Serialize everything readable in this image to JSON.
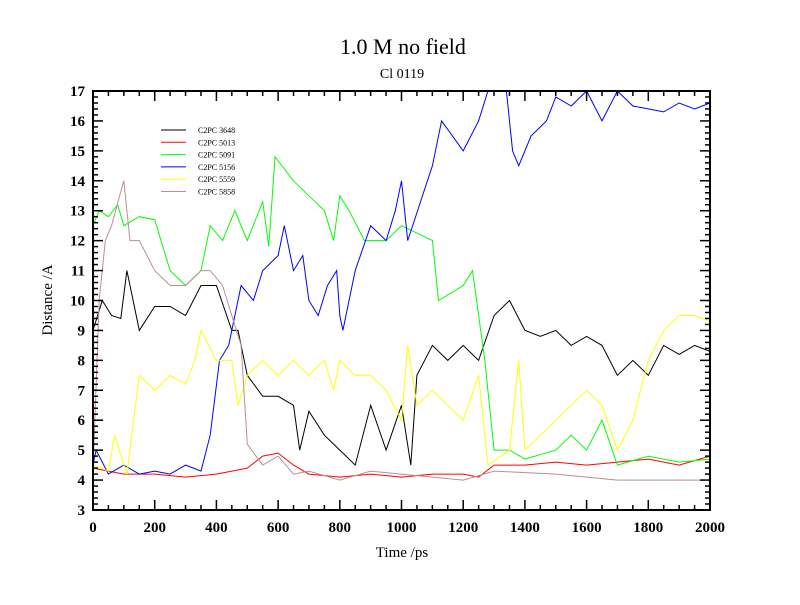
{
  "chart_data": {
    "type": "line",
    "title": "1.0 M no field",
    "subtitle": "Cl 0119",
    "xlabel": "Time /ps",
    "ylabel": "Distance /A",
    "xlim": [
      0,
      2000
    ],
    "ylim": [
      3,
      17
    ],
    "xticks": [
      0,
      200,
      400,
      600,
      800,
      1000,
      1200,
      1400,
      1600,
      1800,
      2000
    ],
    "yticks": [
      3,
      4,
      5,
      6,
      7,
      8,
      9,
      10,
      11,
      12,
      13,
      14,
      15,
      16,
      17
    ],
    "grid": false,
    "legend_position": "top-left",
    "series": [
      {
        "name": "C2PC 3648",
        "color": "#000000",
        "points": [
          [
            0,
            9
          ],
          [
            30,
            10
          ],
          [
            60,
            9.5
          ],
          [
            90,
            9.4
          ],
          [
            110,
            11
          ],
          [
            150,
            9
          ],
          [
            200,
            9.8
          ],
          [
            250,
            9.8
          ],
          [
            300,
            9.5
          ],
          [
            350,
            10.5
          ],
          [
            400,
            10.5
          ],
          [
            450,
            9
          ],
          [
            470,
            9
          ],
          [
            500,
            7.5
          ],
          [
            550,
            6.8
          ],
          [
            600,
            6.8
          ],
          [
            650,
            6.5
          ],
          [
            670,
            5
          ],
          [
            700,
            6.3
          ],
          [
            750,
            5.5
          ],
          [
            800,
            5
          ],
          [
            850,
            4.5
          ],
          [
            900,
            6.5
          ],
          [
            950,
            5
          ],
          [
            1000,
            6.5
          ],
          [
            1030,
            4.5
          ],
          [
            1050,
            7.5
          ],
          [
            1100,
            8.5
          ],
          [
            1150,
            8
          ],
          [
            1200,
            8.5
          ],
          [
            1250,
            8
          ],
          [
            1300,
            9.5
          ],
          [
            1350,
            10
          ],
          [
            1400,
            9
          ],
          [
            1450,
            8.8
          ],
          [
            1500,
            9
          ],
          [
            1550,
            8.5
          ],
          [
            1600,
            8.8
          ],
          [
            1650,
            8.5
          ],
          [
            1700,
            7.5
          ],
          [
            1750,
            8
          ],
          [
            1800,
            7.5
          ],
          [
            1850,
            8.5
          ],
          [
            1900,
            8.2
          ],
          [
            1950,
            8.5
          ],
          [
            2000,
            8.3
          ]
        ]
      },
      {
        "name": "C2PC 5013",
        "color": "#ff0000",
        "points": [
          [
            0,
            4.4
          ],
          [
            100,
            4.2
          ],
          [
            200,
            4.2
          ],
          [
            300,
            4.1
          ],
          [
            400,
            4.2
          ],
          [
            500,
            4.4
          ],
          [
            550,
            4.8
          ],
          [
            600,
            4.9
          ],
          [
            650,
            4.5
          ],
          [
            700,
            4.2
          ],
          [
            800,
            4.1
          ],
          [
            900,
            4.2
          ],
          [
            1000,
            4.1
          ],
          [
            1100,
            4.2
          ],
          [
            1200,
            4.2
          ],
          [
            1250,
            4.1
          ],
          [
            1300,
            4.5
          ],
          [
            1400,
            4.5
          ],
          [
            1500,
            4.6
          ],
          [
            1600,
            4.5
          ],
          [
            1700,
            4.6
          ],
          [
            1800,
            4.7
          ],
          [
            1900,
            4.5
          ],
          [
            2000,
            4.8
          ]
        ]
      },
      {
        "name": "C2PC 5091",
        "color": "#00ff00",
        "points": [
          [
            0,
            12.5
          ],
          [
            20,
            13
          ],
          [
            50,
            12.8
          ],
          [
            80,
            13.2
          ],
          [
            100,
            12.5
          ],
          [
            150,
            12.8
          ],
          [
            200,
            12.7
          ],
          [
            250,
            11
          ],
          [
            300,
            10.5
          ],
          [
            350,
            11
          ],
          [
            380,
            12.5
          ],
          [
            420,
            12
          ],
          [
            460,
            13
          ],
          [
            500,
            12
          ],
          [
            550,
            13.3
          ],
          [
            570,
            11.8
          ],
          [
            590,
            14.8
          ],
          [
            650,
            14
          ],
          [
            700,
            13.5
          ],
          [
            750,
            13
          ],
          [
            780,
            12
          ],
          [
            800,
            13.5
          ],
          [
            830,
            13
          ],
          [
            880,
            12
          ],
          [
            950,
            12
          ],
          [
            1000,
            12.5
          ],
          [
            1100,
            12
          ],
          [
            1120,
            10
          ],
          [
            1200,
            10.5
          ],
          [
            1230,
            11
          ],
          [
            1270,
            8
          ],
          [
            1300,
            5
          ],
          [
            1350,
            5
          ],
          [
            1400,
            4.7
          ],
          [
            1500,
            5
          ],
          [
            1550,
            5.5
          ],
          [
            1600,
            5
          ],
          [
            1650,
            6
          ],
          [
            1700,
            4.5
          ],
          [
            1800,
            4.8
          ],
          [
            1900,
            4.6
          ],
          [
            2000,
            4.7
          ]
        ]
      },
      {
        "name": "C2PC 5156",
        "color": "#0000ff",
        "points": [
          [
            0,
            4.5
          ],
          [
            10,
            5
          ],
          [
            50,
            4.2
          ],
          [
            100,
            4.5
          ],
          [
            150,
            4.2
          ],
          [
            200,
            4.3
          ],
          [
            250,
            4.2
          ],
          [
            300,
            4.5
          ],
          [
            350,
            4.3
          ],
          [
            380,
            5.5
          ],
          [
            410,
            8
          ],
          [
            440,
            8.5
          ],
          [
            480,
            10.5
          ],
          [
            520,
            10
          ],
          [
            550,
            11
          ],
          [
            600,
            11.5
          ],
          [
            620,
            12.5
          ],
          [
            650,
            11
          ],
          [
            680,
            11.5
          ],
          [
            700,
            10
          ],
          [
            730,
            9.5
          ],
          [
            760,
            10.5
          ],
          [
            790,
            11
          ],
          [
            800,
            9.5
          ],
          [
            810,
            9
          ],
          [
            850,
            11
          ],
          [
            900,
            12.5
          ],
          [
            950,
            12
          ],
          [
            980,
            13
          ],
          [
            1000,
            14
          ],
          [
            1020,
            12
          ],
          [
            1100,
            14.5
          ],
          [
            1130,
            16
          ],
          [
            1200,
            15
          ],
          [
            1250,
            16
          ],
          [
            1280,
            17
          ],
          [
            1340,
            17
          ],
          [
            1360,
            15
          ],
          [
            1380,
            14.5
          ],
          [
            1420,
            15.5
          ],
          [
            1470,
            16
          ],
          [
            1500,
            16.8
          ],
          [
            1550,
            16.5
          ],
          [
            1600,
            17
          ],
          [
            1650,
            16
          ],
          [
            1700,
            17
          ],
          [
            1750,
            16.5
          ],
          [
            1850,
            16.3
          ],
          [
            1900,
            16.6
          ],
          [
            1950,
            16.4
          ],
          [
            2000,
            16.6
          ]
        ]
      },
      {
        "name": "C2PC 5559",
        "color": "#ffff00",
        "points": [
          [
            0,
            4.5
          ],
          [
            50,
            4.3
          ],
          [
            70,
            5.5
          ],
          [
            110,
            4.2
          ],
          [
            150,
            7.5
          ],
          [
            200,
            7
          ],
          [
            250,
            7.5
          ],
          [
            300,
            7.2
          ],
          [
            330,
            8
          ],
          [
            350,
            9
          ],
          [
            400,
            8
          ],
          [
            450,
            8
          ],
          [
            470,
            6.5
          ],
          [
            500,
            7.5
          ],
          [
            550,
            8
          ],
          [
            600,
            7.5
          ],
          [
            650,
            8
          ],
          [
            700,
            7.5
          ],
          [
            750,
            8
          ],
          [
            780,
            7
          ],
          [
            800,
            8
          ],
          [
            850,
            7.5
          ],
          [
            900,
            7.5
          ],
          [
            950,
            7
          ],
          [
            1000,
            6
          ],
          [
            1020,
            8.5
          ],
          [
            1050,
            6.5
          ],
          [
            1100,
            7
          ],
          [
            1150,
            6.5
          ],
          [
            1200,
            6
          ],
          [
            1250,
            7.5
          ],
          [
            1280,
            4.5
          ],
          [
            1350,
            5
          ],
          [
            1380,
            8
          ],
          [
            1400,
            5
          ],
          [
            1450,
            5.5
          ],
          [
            1500,
            6
          ],
          [
            1550,
            6.5
          ],
          [
            1600,
            7
          ],
          [
            1650,
            6.5
          ],
          [
            1700,
            5
          ],
          [
            1750,
            6
          ],
          [
            1800,
            8
          ],
          [
            1850,
            9
          ],
          [
            1900,
            9.5
          ],
          [
            1950,
            9.5
          ],
          [
            2000,
            9.3
          ]
        ]
      },
      {
        "name": "C2PC 5858",
        "color": "#bc8f8f",
        "points": [
          [
            0,
            4.3
          ],
          [
            20,
            10
          ],
          [
            40,
            12
          ],
          [
            60,
            12.5
          ],
          [
            100,
            14
          ],
          [
            120,
            12
          ],
          [
            150,
            12
          ],
          [
            200,
            11
          ],
          [
            250,
            10.5
          ],
          [
            300,
            10.5
          ],
          [
            350,
            11
          ],
          [
            380,
            11
          ],
          [
            420,
            10.5
          ],
          [
            450,
            9.5
          ],
          [
            480,
            8.5
          ],
          [
            500,
            5.2
          ],
          [
            550,
            4.5
          ],
          [
            600,
            4.8
          ],
          [
            650,
            4.2
          ],
          [
            700,
            4.3
          ],
          [
            800,
            4
          ],
          [
            900,
            4.3
          ],
          [
            1000,
            4.2
          ],
          [
            1200,
            4
          ],
          [
            1300,
            4.3
          ],
          [
            1500,
            4.2
          ],
          [
            1700,
            4
          ],
          [
            2000,
            4
          ]
        ]
      }
    ]
  }
}
